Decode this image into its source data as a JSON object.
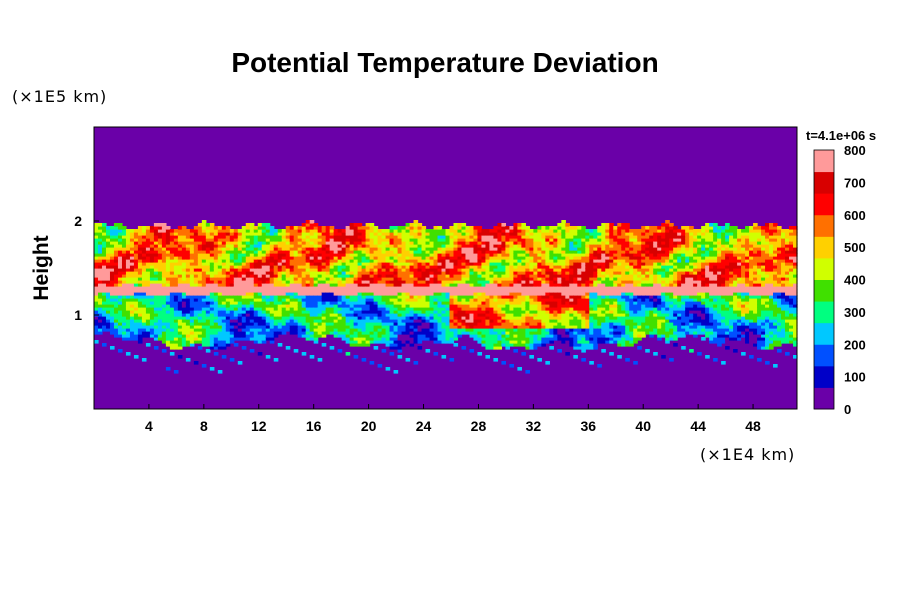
{
  "chart_data": {
    "type": "heatmap",
    "title": "Potential Temperature Deviation",
    "ylabel": "Height",
    "xlabel": "",
    "x_unit": "(×1E4 km)",
    "y_unit": "(×1E5 km)",
    "time_label": "t=4.1e+06 s",
    "x_ticks": [
      "4",
      "8",
      "12",
      "16",
      "20",
      "24",
      "28",
      "32",
      "36",
      "40",
      "44",
      "48"
    ],
    "y_ticks": [
      "1",
      "2"
    ],
    "xlim": [
      0,
      51.2
    ],
    "ylim": [
      0,
      3
    ],
    "colorbar": {
      "range": [
        0,
        800
      ],
      "ticks": [
        "0",
        "100",
        "200",
        "300",
        "400",
        "500",
        "600",
        "700",
        "800"
      ],
      "colors": [
        "#6a00a8",
        "#0000c8",
        "#0050ff",
        "#00c8ff",
        "#00ff80",
        "#40e000",
        "#d0ff00",
        "#ffd000",
        "#ff7000",
        "#ff0000",
        "#d80000",
        "#ff9a9a"
      ]
    },
    "field_description": {
      "background_value": 0,
      "layers": [
        {
          "y_range": [
            0.5,
            1.95
          ],
          "values": "turbulent 0-800"
        },
        {
          "y_range": [
            1.22,
            1.32
          ],
          "value": 800
        }
      ]
    }
  }
}
